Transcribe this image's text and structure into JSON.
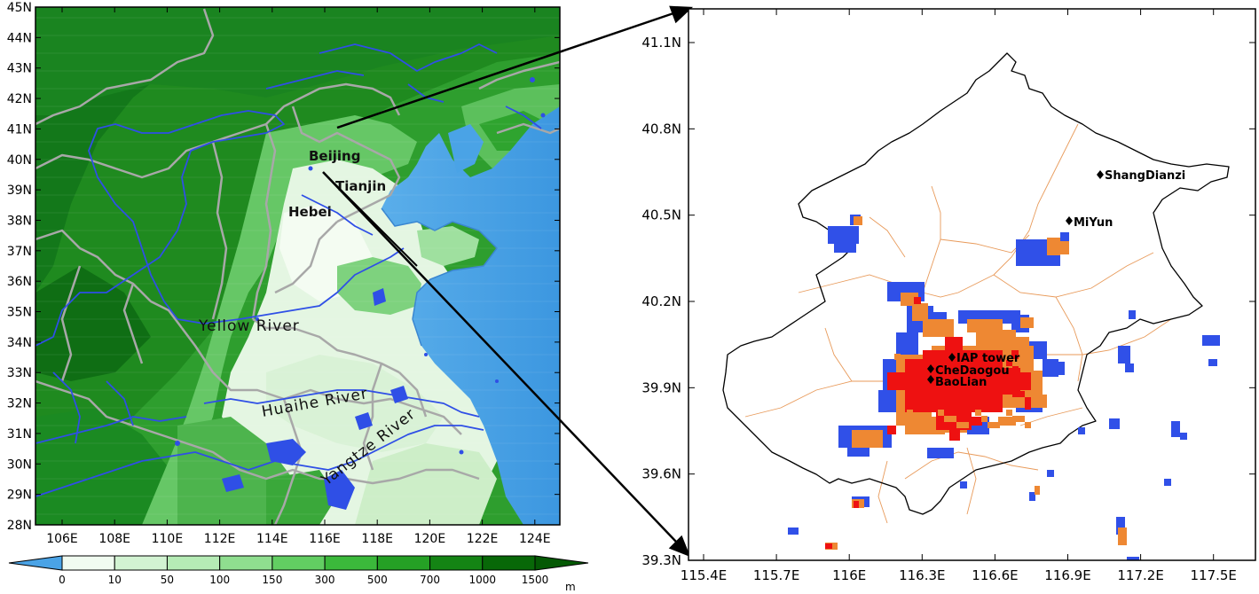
{
  "left_map": {
    "lat_labels": [
      "45N",
      "44N",
      "43N",
      "42N",
      "41N",
      "40N",
      "39N",
      "38N",
      "37N",
      "36N",
      "35N",
      "34N",
      "33N",
      "32N",
      "31N",
      "30N",
      "29N",
      "28N"
    ],
    "lon_labels": [
      "106E",
      "108E",
      "110E",
      "112E",
      "114E",
      "116E",
      "118E",
      "120E",
      "122E",
      "124E"
    ],
    "place_labels": [
      {
        "name": "beijing",
        "text": "Beijing"
      },
      {
        "name": "tianjin",
        "text": "Tianjin"
      },
      {
        "name": "hebei",
        "text": "Hebei"
      }
    ],
    "river_labels": [
      {
        "name": "yellow-river",
        "text": "Yellow River"
      },
      {
        "name": "huaihe-river",
        "text": "Huaihe River"
      },
      {
        "name": "yangtze-river",
        "text": "Yangtze River"
      }
    ]
  },
  "colorbar": {
    "labels": [
      "0",
      "10",
      "50",
      "100",
      "150",
      "300",
      "500",
      "700",
      "1000",
      "1500"
    ],
    "unit": "m",
    "colors": [
      "#f0fbf0",
      "#d2f3d2",
      "#b5ebb5",
      "#8fde8f",
      "#62ce62",
      "#3bb93b",
      "#25a025",
      "#148414",
      "#086808"
    ],
    "under_color": "#4aa3e6",
    "over_color": "#045904"
  },
  "right_map": {
    "lat_labels": [
      "41.1N",
      "40.8N",
      "40.5N",
      "40.2N",
      "39.9N",
      "39.6N",
      "39.3N"
    ],
    "lon_labels": [
      "115.4E",
      "115.7E",
      "116E",
      "116.3E",
      "116.6E",
      "116.9E",
      "117.2E",
      "117.5E"
    ],
    "sites": [
      {
        "name": "shangdianzi",
        "text": "ShangDianzi"
      },
      {
        "name": "miyun",
        "text": "MiYun"
      },
      {
        "name": "iap-tower",
        "text": "IAP tower"
      },
      {
        "name": "chedaogou",
        "text": "CheDaogou"
      },
      {
        "name": "baolian",
        "text": "BaoLian"
      }
    ],
    "landuse_colors": {
      "high": "#ee1111",
      "medium": "#ee8833",
      "low": "#3050e8"
    }
  }
}
